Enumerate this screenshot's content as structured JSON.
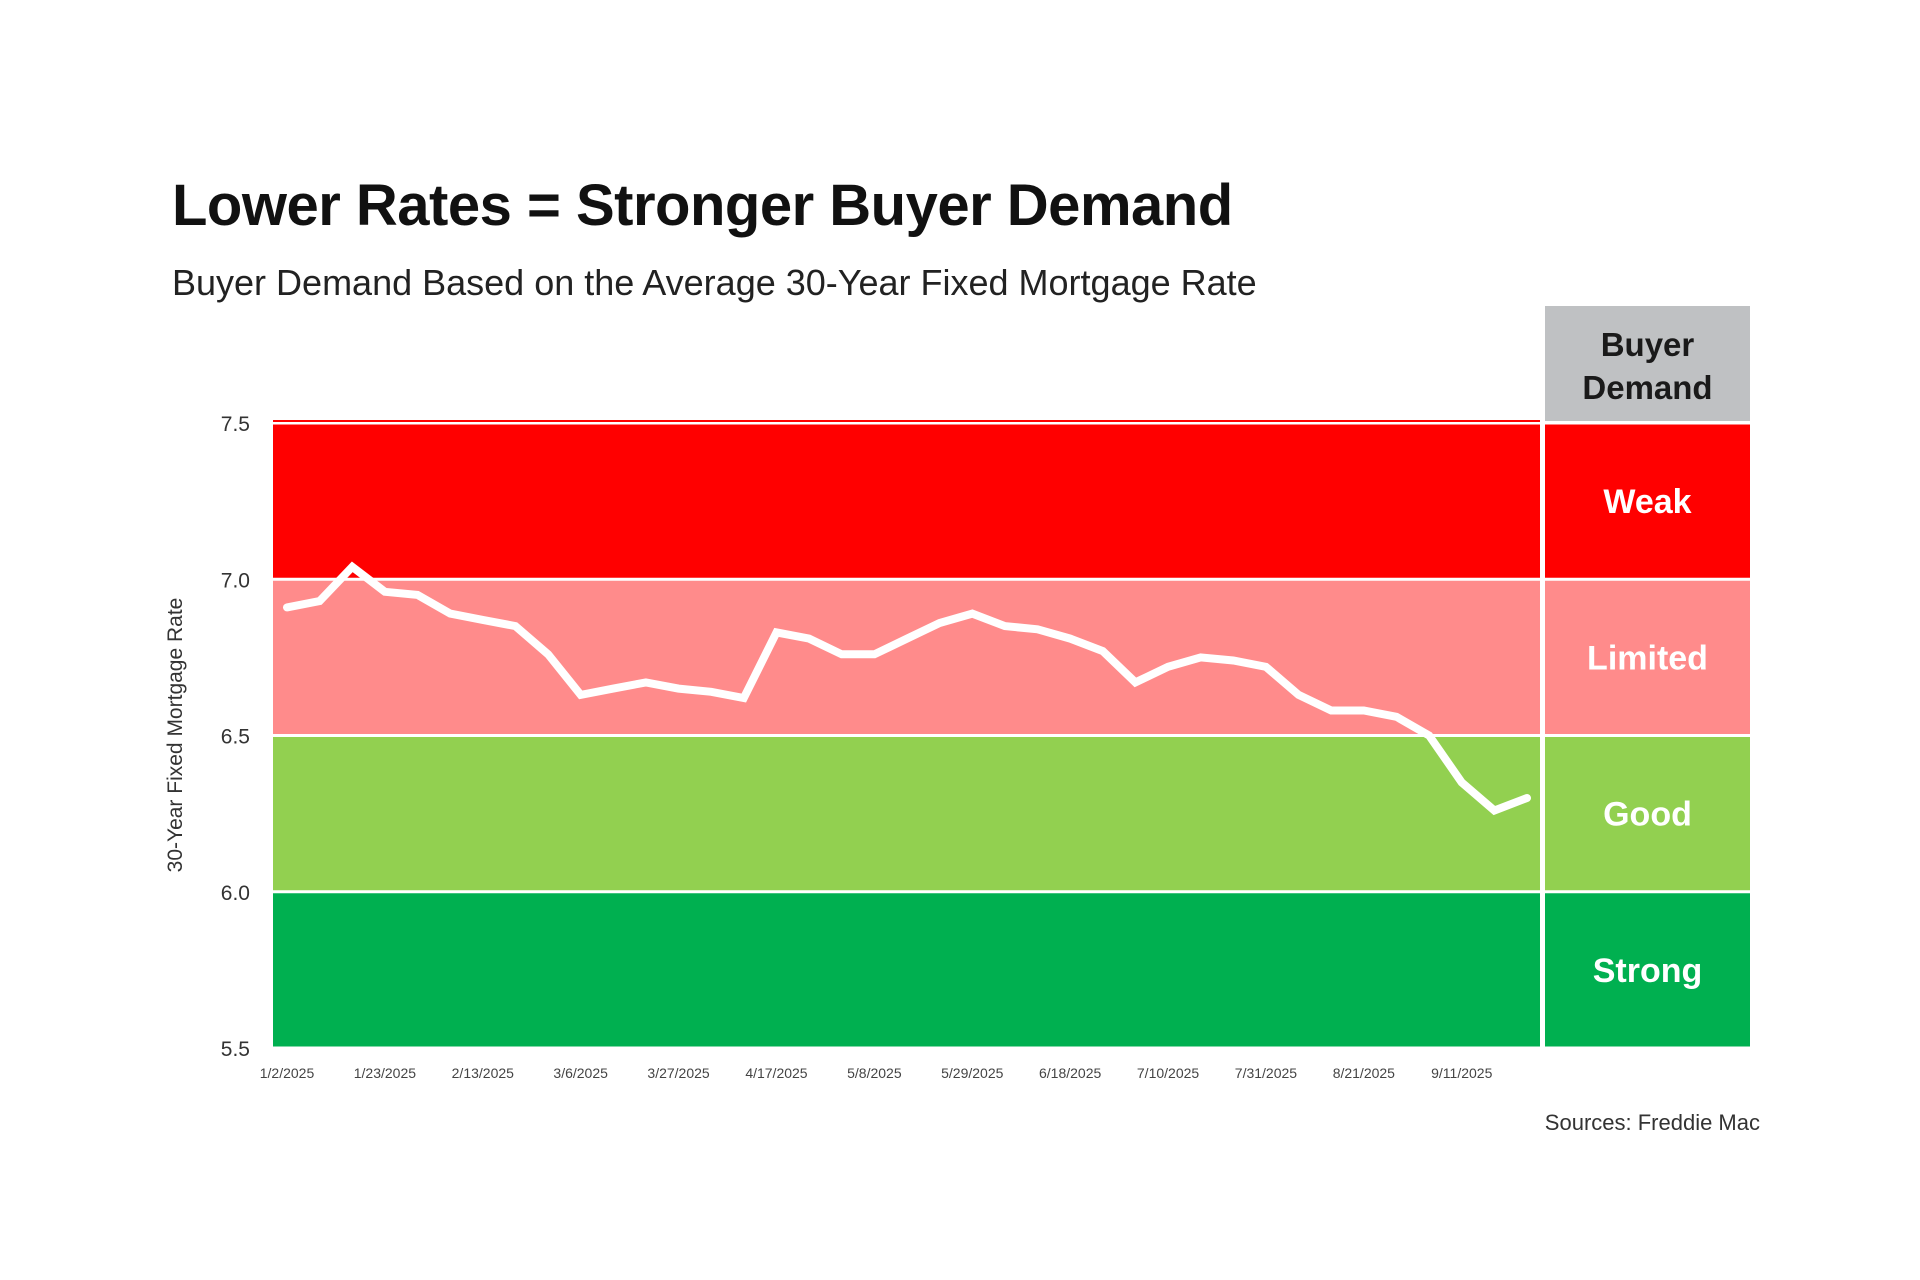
{
  "header": {
    "title": "Lower Rates = Stronger Buyer Demand",
    "subtitle": "Buyer Demand Based on the Average 30-Year Fixed Mortgage Rate"
  },
  "source": "Sources: Freddie Mac",
  "chart_data": {
    "type": "line",
    "title": "Lower Rates = Stronger Buyer Demand",
    "subtitle": "Buyer Demand Based on the Average 30-Year Fixed Mortgage Rate",
    "xlabel": "",
    "ylabel": "30-Year Fixed Mortgage Rate",
    "ylim": [
      5.5,
      7.5
    ],
    "yticks": [
      "5.5",
      "6.0",
      "6.5",
      "7.0",
      "7.5"
    ],
    "grid": false,
    "x": [
      "1/2/2025",
      "1/9/2025",
      "1/16/2025",
      "1/23/2025",
      "1/30/2025",
      "2/6/2025",
      "2/13/2025",
      "2/20/2025",
      "2/27/2025",
      "3/6/2025",
      "3/13/2025",
      "3/20/2025",
      "3/27/2025",
      "4/3/2025",
      "4/10/2025",
      "4/17/2025",
      "4/24/2025",
      "5/1/2025",
      "5/8/2025",
      "5/15/2025",
      "5/22/2025",
      "5/29/2025",
      "6/5/2025",
      "6/12/2025",
      "6/18/2025",
      "6/26/2025",
      "7/3/2025",
      "7/10/2025",
      "7/17/2025",
      "7/24/2025",
      "7/31/2025",
      "8/7/2025",
      "8/14/2025",
      "8/21/2025",
      "8/28/2025",
      "9/4/2025",
      "9/11/2025",
      "9/18/2025",
      "9/25/2025"
    ],
    "xtick_labels": [
      "1/2/2025",
      "1/23/2025",
      "2/13/2025",
      "3/6/2025",
      "3/27/2025",
      "4/17/2025",
      "5/8/2025",
      "5/29/2025",
      "6/18/2025",
      "7/10/2025",
      "7/31/2025",
      "8/21/2025",
      "9/11/2025"
    ],
    "series": [
      {
        "name": "30-Year Fixed Mortgage Rate",
        "color": "#ffffff",
        "values": [
          6.91,
          6.93,
          7.04,
          6.96,
          6.95,
          6.89,
          6.87,
          6.85,
          6.76,
          6.63,
          6.65,
          6.67,
          6.65,
          6.64,
          6.62,
          6.83,
          6.81,
          6.76,
          6.76,
          6.81,
          6.86,
          6.89,
          6.85,
          6.84,
          6.81,
          6.77,
          6.67,
          6.72,
          6.75,
          6.74,
          6.72,
          6.63,
          6.58,
          6.58,
          6.56,
          6.5,
          6.35,
          6.26,
          6.3
        ]
      }
    ],
    "bands": [
      {
        "label": "Weak",
        "from": 7.0,
        "to": 7.5,
        "color": "#ff0000"
      },
      {
        "label": "Limited",
        "from": 6.5,
        "to": 7.0,
        "color": "#ff8b8b"
      },
      {
        "label": "Good",
        "from": 6.0,
        "to": 6.5,
        "color": "#92d050"
      },
      {
        "label": "Strong",
        "from": 5.5,
        "to": 6.0,
        "color": "#00b050"
      }
    ],
    "band_header": "Buyer Demand",
    "band_header_lines": [
      "Buyer",
      "Demand"
    ],
    "band_header_color": "#bfc1c3",
    "legend": "none"
  }
}
